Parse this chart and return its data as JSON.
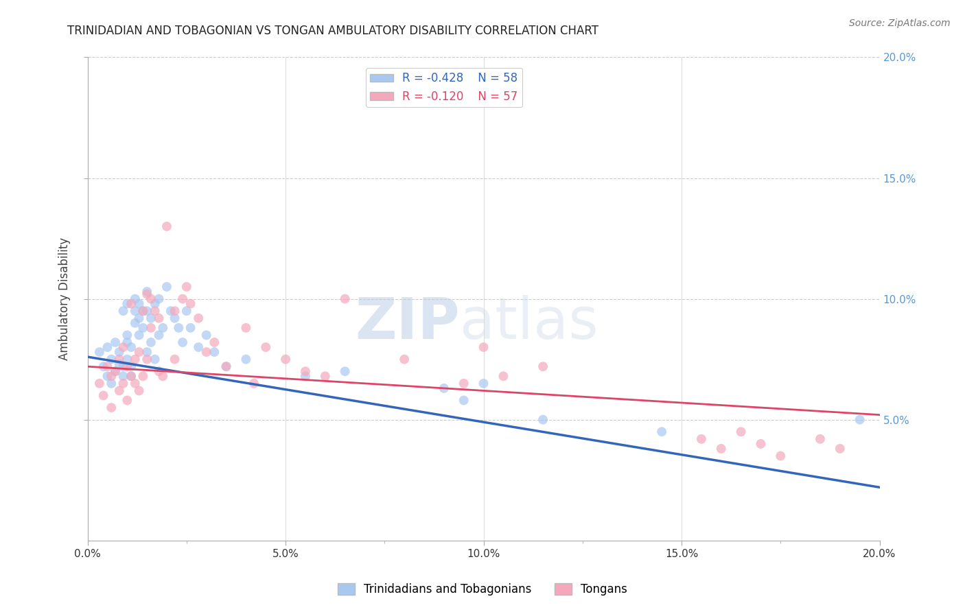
{
  "title": "TRINIDADIAN AND TOBAGONIAN VS TONGAN AMBULATORY DISABILITY CORRELATION CHART",
  "source_text": "Source: ZipAtlas.com",
  "ylabel": "Ambulatory Disability",
  "xlim": [
    0.0,
    0.2
  ],
  "ylim": [
    0.0,
    0.2
  ],
  "xtick_labels": [
    "0.0%",
    "",
    "",
    "",
    "",
    "5.0%",
    "",
    "",
    "",
    "",
    "10.0%",
    "",
    "",
    "",
    "",
    "15.0%",
    "",
    "",
    "",
    "",
    "20.0%"
  ],
  "xtick_vals": [
    0.0,
    0.01,
    0.02,
    0.03,
    0.04,
    0.05,
    0.06,
    0.07,
    0.08,
    0.09,
    0.1,
    0.11,
    0.12,
    0.13,
    0.14,
    0.15,
    0.16,
    0.17,
    0.18,
    0.19,
    0.2
  ],
  "ytick_labels": [
    "5.0%",
    "10.0%",
    "15.0%",
    "20.0%"
  ],
  "ytick_vals": [
    0.05,
    0.1,
    0.15,
    0.2
  ],
  "blue_R": -0.428,
  "blue_N": 58,
  "pink_R": -0.12,
  "pink_N": 57,
  "blue_color": "#A8C8F0",
  "pink_color": "#F5A8BC",
  "blue_line_color": "#3366BB",
  "pink_line_color": "#DD4466",
  "watermark_zip": "ZIP",
  "watermark_atlas": "atlas",
  "legend_label_blue": "Trinidadians and Tobagonians",
  "legend_label_pink": "Tongans",
  "blue_x": [
    0.003,
    0.004,
    0.005,
    0.005,
    0.006,
    0.006,
    0.007,
    0.007,
    0.008,
    0.008,
    0.009,
    0.009,
    0.009,
    0.01,
    0.01,
    0.01,
    0.01,
    0.011,
    0.011,
    0.011,
    0.012,
    0.012,
    0.012,
    0.013,
    0.013,
    0.013,
    0.014,
    0.014,
    0.015,
    0.015,
    0.015,
    0.016,
    0.016,
    0.017,
    0.017,
    0.018,
    0.018,
    0.019,
    0.02,
    0.021,
    0.022,
    0.023,
    0.024,
    0.025,
    0.026,
    0.028,
    0.03,
    0.032,
    0.035,
    0.04,
    0.055,
    0.065,
    0.09,
    0.095,
    0.1,
    0.115,
    0.145,
    0.195
  ],
  "blue_y": [
    0.078,
    0.072,
    0.08,
    0.068,
    0.075,
    0.065,
    0.082,
    0.07,
    0.078,
    0.073,
    0.072,
    0.068,
    0.095,
    0.098,
    0.085,
    0.082,
    0.075,
    0.08,
    0.072,
    0.068,
    0.1,
    0.095,
    0.09,
    0.098,
    0.092,
    0.085,
    0.095,
    0.088,
    0.103,
    0.095,
    0.078,
    0.092,
    0.082,
    0.098,
    0.075,
    0.1,
    0.085,
    0.088,
    0.105,
    0.095,
    0.092,
    0.088,
    0.082,
    0.095,
    0.088,
    0.08,
    0.085,
    0.078,
    0.072,
    0.075,
    0.068,
    0.07,
    0.063,
    0.058,
    0.065,
    0.05,
    0.045,
    0.05
  ],
  "pink_x": [
    0.003,
    0.004,
    0.005,
    0.006,
    0.006,
    0.007,
    0.008,
    0.008,
    0.009,
    0.009,
    0.01,
    0.01,
    0.011,
    0.011,
    0.012,
    0.012,
    0.013,
    0.013,
    0.014,
    0.014,
    0.015,
    0.015,
    0.016,
    0.016,
    0.017,
    0.018,
    0.018,
    0.019,
    0.02,
    0.022,
    0.022,
    0.024,
    0.025,
    0.026,
    0.028,
    0.03,
    0.032,
    0.035,
    0.04,
    0.042,
    0.045,
    0.05,
    0.055,
    0.06,
    0.065,
    0.08,
    0.095,
    0.1,
    0.105,
    0.115,
    0.155,
    0.16,
    0.165,
    0.17,
    0.175,
    0.185,
    0.19
  ],
  "pink_y": [
    0.065,
    0.06,
    0.072,
    0.068,
    0.055,
    0.07,
    0.075,
    0.062,
    0.08,
    0.065,
    0.072,
    0.058,
    0.068,
    0.098,
    0.075,
    0.065,
    0.078,
    0.062,
    0.095,
    0.068,
    0.102,
    0.075,
    0.1,
    0.088,
    0.095,
    0.092,
    0.07,
    0.068,
    0.13,
    0.095,
    0.075,
    0.1,
    0.105,
    0.098,
    0.092,
    0.078,
    0.082,
    0.072,
    0.088,
    0.065,
    0.08,
    0.075,
    0.07,
    0.068,
    0.1,
    0.075,
    0.065,
    0.08,
    0.068,
    0.072,
    0.042,
    0.038,
    0.045,
    0.04,
    0.035,
    0.042,
    0.038
  ],
  "blue_line_x0": 0.0,
  "blue_line_x1": 0.2,
  "blue_line_y0": 0.076,
  "blue_line_y1": 0.022,
  "pink_line_x0": 0.0,
  "pink_line_x1": 0.2,
  "pink_line_y0": 0.072,
  "pink_line_y1": 0.052
}
